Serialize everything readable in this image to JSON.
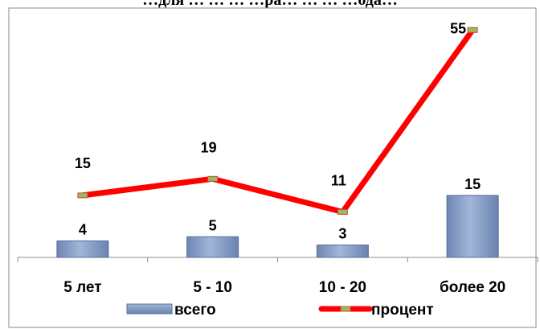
{
  "chart_data": {
    "type": "bar",
    "title": "…для … … … …ра… … … …ода…",
    "categories": [
      "5 лет",
      "5 - 10",
      "10 - 20",
      "более 20"
    ],
    "series": [
      {
        "name": "всего",
        "type": "bar",
        "values": [
          4,
          5,
          3,
          15
        ],
        "color": "#7f97c2"
      },
      {
        "name": "процент",
        "type": "line",
        "values": [
          15,
          19,
          11,
          55
        ],
        "color": "#ff0000",
        "marker_color": "#9bbb59"
      }
    ],
    "ylim": [
      0,
      60
    ],
    "grid": false,
    "legend": "bottom"
  }
}
